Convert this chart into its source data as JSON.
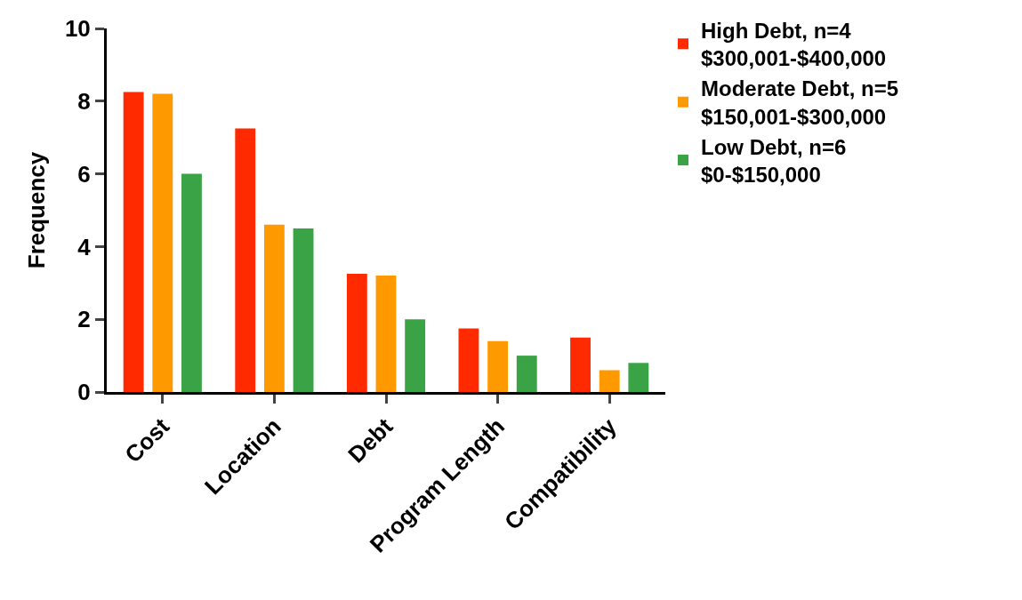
{
  "chart_data": {
    "type": "bar",
    "ylabel": "Frequency",
    "categories": [
      "Cost",
      "Location",
      "Debt",
      "Program Length",
      "Compatibility"
    ],
    "series": [
      {
        "name": "High Debt, n=4\n$300,001-$400,000",
        "color": "#ff2a00",
        "values": [
          8.25,
          7.25,
          3.25,
          1.75,
          1.5
        ]
      },
      {
        "name": "Moderate Debt, n=5\n$150,001-$300,000",
        "color": "#ff9900",
        "values": [
          8.2,
          4.6,
          3.2,
          1.4,
          0.6
        ]
      },
      {
        "name": "Low Debt, n=6\n$0-$150,000",
        "color": "#3aa346",
        "values": [
          6.0,
          4.5,
          2.0,
          1.0,
          0.8
        ]
      }
    ],
    "ylim": [
      0,
      10
    ],
    "yticks": [
      0,
      2,
      4,
      6,
      8,
      10
    ],
    "legend": "top right"
  }
}
